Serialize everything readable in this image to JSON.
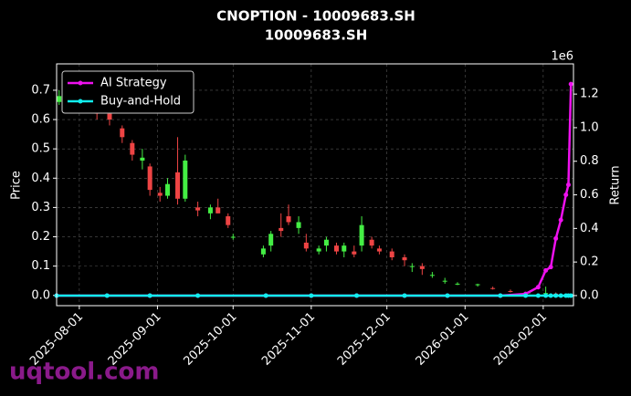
{
  "chart_data": {
    "type": "candlestick",
    "title": "CNOPTION - 10009683.SH",
    "subtitle": "10009683.SH",
    "y_label": "Price",
    "y2_label": "Return",
    "y2_offset_label": "1e6",
    "watermark": "uqtool.com",
    "grid": true,
    "legend_position": "upper-left",
    "up_color": "#44ee44",
    "down_color": "#ee4444",
    "xlim": [
      "2025-07-23",
      "2026-02-13"
    ],
    "xticks": [
      "2025-08-01",
      "2025-09-01",
      "2025-10-01",
      "2025-11-01",
      "2025-12-01",
      "2026-01-01",
      "2026-02-01"
    ],
    "ylim": [
      -0.035,
      0.79
    ],
    "yticks": [
      {
        "value": 0,
        "label": "0.0"
      },
      0.1,
      0.2,
      0.3,
      0.4,
      0.5,
      0.6,
      0.7
    ],
    "y2lim": [
      -0.06,
      1.38
    ],
    "y2ticks": [
      {
        "value": 0,
        "label": "0.0"
      },
      0.2,
      0.4,
      0.6,
      0.8,
      {
        "value": 1,
        "label": "1.0"
      },
      1.2
    ],
    "candles": {
      "x": [
        "2025-07-24",
        "2025-07-29",
        "2025-08-04",
        "2025-08-08",
        "2025-08-13",
        "2025-08-18",
        "2025-08-22",
        "2025-08-26",
        "2025-08-29",
        "2025-09-02",
        "2025-09-05",
        "2025-09-09",
        "2025-09-12",
        "2025-09-17",
        "2025-09-22",
        "2025-09-25",
        "2025-09-29",
        "2025-10-01",
        "2025-10-13",
        "2025-10-16",
        "2025-10-20",
        "2025-10-23",
        "2025-10-27",
        "2025-10-30",
        "2025-11-04",
        "2025-11-07",
        "2025-11-11",
        "2025-11-14",
        "2025-11-18",
        "2025-11-21",
        "2025-11-25",
        "2025-11-28",
        "2025-12-03",
        "2025-12-08",
        "2025-12-11",
        "2025-12-15",
        "2025-12-19",
        "2025-12-24",
        "2025-12-29",
        "2026-01-06",
        "2026-01-12",
        "2026-01-19",
        "2026-01-26",
        "2026-02-02",
        "2026-02-06",
        "2026-02-11"
      ],
      "open": [
        0.66,
        0.68,
        0.69,
        0.65,
        0.62,
        0.57,
        0.52,
        0.46,
        0.44,
        0.35,
        0.34,
        0.42,
        0.33,
        0.3,
        0.28,
        0.3,
        0.27,
        0.2,
        0.14,
        0.17,
        0.23,
        0.27,
        0.23,
        0.18,
        0.15,
        0.17,
        0.17,
        0.15,
        0.15,
        0.17,
        0.19,
        0.16,
        0.15,
        0.13,
        0.1,
        0.1,
        0.07,
        0.05,
        0.04,
        0.035,
        0.025,
        0.015,
        0.01,
        0.006,
        0.006,
        0.004
      ],
      "high": [
        0.7,
        0.71,
        0.7,
        0.67,
        0.64,
        0.58,
        0.53,
        0.5,
        0.45,
        0.37,
        0.4,
        0.54,
        0.48,
        0.32,
        0.31,
        0.33,
        0.28,
        0.21,
        0.17,
        0.22,
        0.28,
        0.31,
        0.27,
        0.21,
        0.17,
        0.2,
        0.18,
        0.18,
        0.17,
        0.27,
        0.2,
        0.17,
        0.16,
        0.14,
        0.11,
        0.11,
        0.08,
        0.06,
        0.045,
        0.04,
        0.03,
        0.02,
        0.012,
        0.03,
        0.01,
        0.006
      ],
      "low": [
        0.65,
        0.66,
        0.64,
        0.6,
        0.58,
        0.52,
        0.46,
        0.43,
        0.34,
        0.32,
        0.33,
        0.31,
        0.32,
        0.27,
        0.26,
        0.28,
        0.23,
        0.19,
        0.13,
        0.15,
        0.2,
        0.24,
        0.21,
        0.15,
        0.14,
        0.15,
        0.14,
        0.13,
        0.13,
        0.15,
        0.16,
        0.14,
        0.12,
        0.1,
        0.08,
        0.07,
        0.06,
        0.04,
        0.035,
        0.03,
        0.02,
        0.01,
        0.008,
        0.003,
        0.004,
        0.003
      ],
      "close": [
        0.68,
        0.69,
        0.65,
        0.62,
        0.6,
        0.54,
        0.48,
        0.47,
        0.36,
        0.34,
        0.38,
        0.33,
        0.46,
        0.29,
        0.3,
        0.28,
        0.24,
        0.2,
        0.16,
        0.21,
        0.22,
        0.25,
        0.25,
        0.16,
        0.16,
        0.19,
        0.15,
        0.17,
        0.14,
        0.24,
        0.17,
        0.15,
        0.13,
        0.12,
        0.1,
        0.09,
        0.07,
        0.05,
        0.04,
        0.038,
        0.022,
        0.012,
        0.01,
        0.008,
        0.005,
        0.005
      ]
    },
    "x": [
      "2025-07-23",
      "2025-08-12",
      "2025-08-29",
      "2025-09-17",
      "2025-10-14",
      "2025-11-01",
      "2025-11-19",
      "2025-12-08",
      "2025-12-25",
      "2026-01-15",
      "2026-01-25",
      "2026-01-30",
      "2026-02-02",
      "2026-02-04",
      "2026-02-06",
      "2026-02-08",
      "2026-02-10",
      "2026-02-11",
      "2026-02-12"
    ],
    "series": [
      {
        "name": "AI Strategy",
        "color": "#ee11ee",
        "axis": "y2",
        "values": [
          0,
          0,
          0,
          0,
          0,
          0,
          0,
          0,
          0,
          0,
          0.01,
          0.05,
          0.15,
          0.17,
          0.34,
          0.45,
          0.6,
          0.66,
          1.26
        ]
      },
      {
        "name": "Buy-and-Hold",
        "color": "#11eeee",
        "axis": "y2",
        "values": [
          0,
          0,
          0,
          0,
          0,
          0,
          0,
          0,
          0,
          0,
          0,
          0,
          0,
          0,
          0,
          0,
          0,
          0,
          0
        ]
      }
    ]
  }
}
